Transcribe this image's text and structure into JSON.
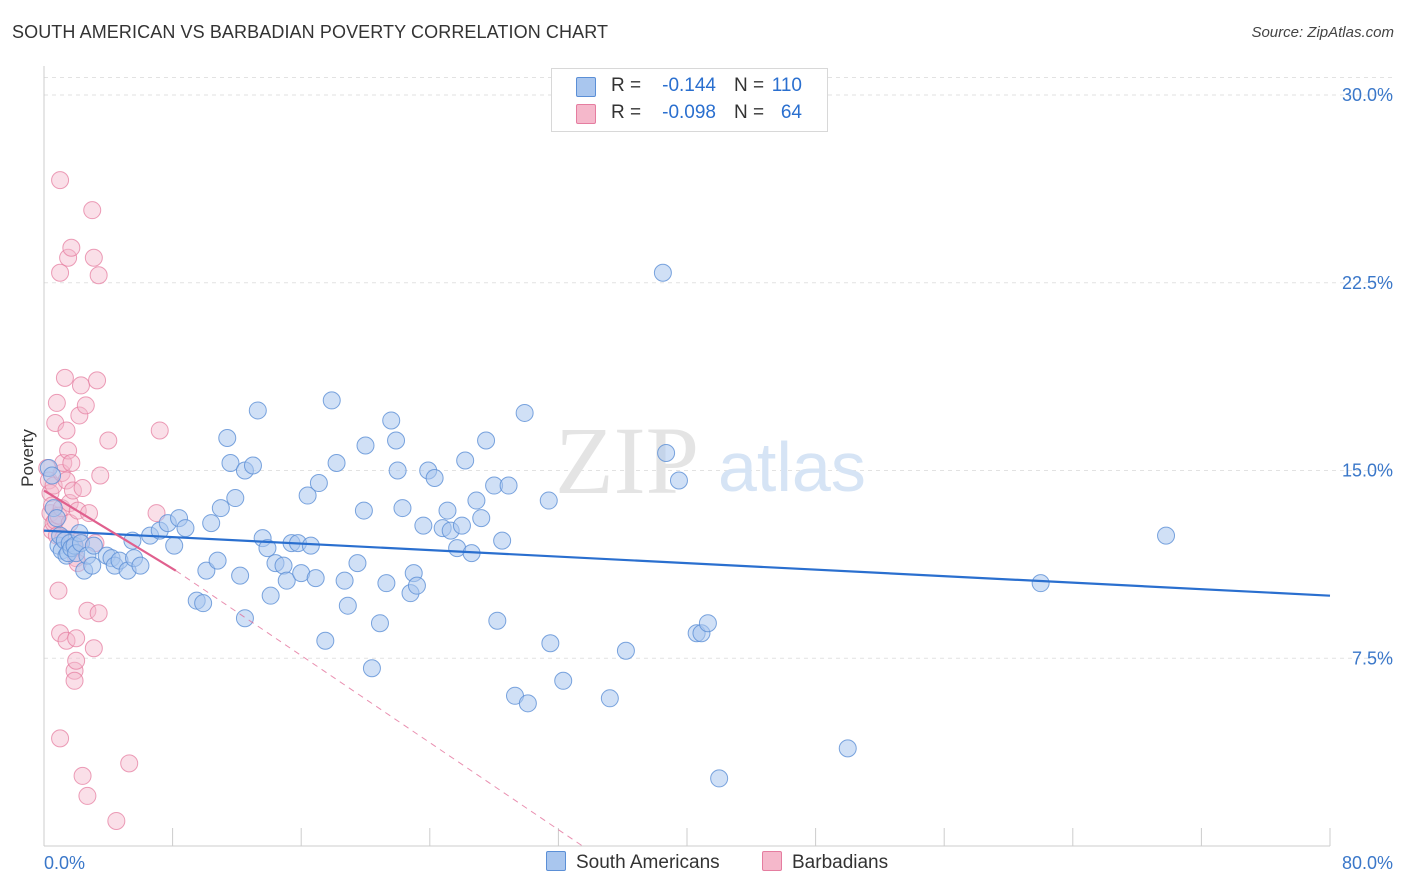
{
  "title": "SOUTH AMERICAN VS BARBADIAN POVERTY CORRELATION CHART",
  "source": "Source: ZipAtlas.com",
  "watermark": {
    "zip": "ZIP",
    "atlas": "atlas"
  },
  "legend": {
    "rows": [
      {
        "r_label": "R =",
        "r_value": "-0.144",
        "n_label": "N =",
        "n_value": "110"
      },
      {
        "r_label": "R =",
        "r_value": "-0.098",
        "n_label": "N =",
        "n_value": "64"
      }
    ]
  },
  "bottom_legend": [
    "South Americans",
    "Barbadians"
  ],
  "colors": {
    "blue_fill": "#a9c6ee",
    "blue_stroke": "#5b8fd6",
    "blue_line": "#2a6fcf",
    "pink_fill": "#f5b8cb",
    "pink_stroke": "#e57da0",
    "pink_line": "#e0608e",
    "axis_text": "#3a77c9"
  },
  "chart_data": {
    "type": "scatter",
    "title": "SOUTH AMERICAN VS BARBADIAN POVERTY CORRELATION CHART",
    "xlabel": "",
    "ylabel": "Poverty",
    "xlim": [
      0,
      80
    ],
    "ylim": [
      0,
      31
    ],
    "x_tick_labels": [
      "0.0%",
      "80.0%"
    ],
    "y_ticks": [
      7.5,
      15.0,
      22.5,
      30.0
    ],
    "y_tick_labels": [
      "7.5%",
      "15.0%",
      "22.5%",
      "30.0%"
    ],
    "grid": true,
    "series": [
      {
        "name": "South Americans",
        "r": -0.144,
        "n": 110,
        "trend": {
          "x": [
            0,
            80
          ],
          "y": [
            12.6,
            10.0
          ]
        },
        "points": [
          [
            0.3,
            15.1
          ],
          [
            0.5,
            14.8
          ],
          [
            0.6,
            13.5
          ],
          [
            0.8,
            13.1
          ],
          [
            0.9,
            12.0
          ],
          [
            1.0,
            12.4
          ],
          [
            1.1,
            11.8
          ],
          [
            1.3,
            12.2
          ],
          [
            1.4,
            11.6
          ],
          [
            1.5,
            11.7
          ],
          [
            1.6,
            12.1
          ],
          [
            1.7,
            11.9
          ],
          [
            1.9,
            12.0
          ],
          [
            2.0,
            11.7
          ],
          [
            2.2,
            12.5
          ],
          [
            2.3,
            12.1
          ],
          [
            2.5,
            11.0
          ],
          [
            2.7,
            11.6
          ],
          [
            3.0,
            11.2
          ],
          [
            3.1,
            12.0
          ],
          [
            3.9,
            11.6
          ],
          [
            4.2,
            11.5
          ],
          [
            4.4,
            11.2
          ],
          [
            4.7,
            11.4
          ],
          [
            5.2,
            11.0
          ],
          [
            5.5,
            12.2
          ],
          [
            5.6,
            11.5
          ],
          [
            6.0,
            11.2
          ],
          [
            6.6,
            12.4
          ],
          [
            7.2,
            12.6
          ],
          [
            7.7,
            12.9
          ],
          [
            8.1,
            12.0
          ],
          [
            8.4,
            13.1
          ],
          [
            8.8,
            12.7
          ],
          [
            9.5,
            9.8
          ],
          [
            9.9,
            9.7
          ],
          [
            10.1,
            11.0
          ],
          [
            10.4,
            12.9
          ],
          [
            10.8,
            11.4
          ],
          [
            11.0,
            13.5
          ],
          [
            11.4,
            16.3
          ],
          [
            11.6,
            15.3
          ],
          [
            11.9,
            13.9
          ],
          [
            12.2,
            10.8
          ],
          [
            12.5,
            9.1
          ],
          [
            12.5,
            15.0
          ],
          [
            13.0,
            15.2
          ],
          [
            13.3,
            17.4
          ],
          [
            13.6,
            12.3
          ],
          [
            13.9,
            11.9
          ],
          [
            14.1,
            10.0
          ],
          [
            14.4,
            11.3
          ],
          [
            14.9,
            11.2
          ],
          [
            15.1,
            10.6
          ],
          [
            15.4,
            12.1
          ],
          [
            15.8,
            12.1
          ],
          [
            16.0,
            10.9
          ],
          [
            16.4,
            14.0
          ],
          [
            16.6,
            12.0
          ],
          [
            16.9,
            10.7
          ],
          [
            17.1,
            14.5
          ],
          [
            17.5,
            8.2
          ],
          [
            17.9,
            17.8
          ],
          [
            18.2,
            15.3
          ],
          [
            18.7,
            10.6
          ],
          [
            18.9,
            9.6
          ],
          [
            19.5,
            11.3
          ],
          [
            19.9,
            13.4
          ],
          [
            20.0,
            16.0
          ],
          [
            20.4,
            7.1
          ],
          [
            20.9,
            8.9
          ],
          [
            21.3,
            10.5
          ],
          [
            21.6,
            17.0
          ],
          [
            21.9,
            16.2
          ],
          [
            22.0,
            15.0
          ],
          [
            22.3,
            13.5
          ],
          [
            22.8,
            10.1
          ],
          [
            23.0,
            10.9
          ],
          [
            23.2,
            10.4
          ],
          [
            23.6,
            12.8
          ],
          [
            23.9,
            15.0
          ],
          [
            24.3,
            14.7
          ],
          [
            24.8,
            12.7
          ],
          [
            25.1,
            13.4
          ],
          [
            25.3,
            12.6
          ],
          [
            25.7,
            11.9
          ],
          [
            26.0,
            12.8
          ],
          [
            26.2,
            15.4
          ],
          [
            26.6,
            11.7
          ],
          [
            26.9,
            13.8
          ],
          [
            27.2,
            13.1
          ],
          [
            27.5,
            16.2
          ],
          [
            28.0,
            14.4
          ],
          [
            28.2,
            9.0
          ],
          [
            28.5,
            12.2
          ],
          [
            28.9,
            14.4
          ],
          [
            29.3,
            6.0
          ],
          [
            29.9,
            17.3
          ],
          [
            30.1,
            5.7
          ],
          [
            31.4,
            13.8
          ],
          [
            31.5,
            8.1
          ],
          [
            32.3,
            6.6
          ],
          [
            35.2,
            5.9
          ],
          [
            36.2,
            7.8
          ],
          [
            38.7,
            15.7
          ],
          [
            39.5,
            14.6
          ],
          [
            38.5,
            22.9
          ],
          [
            40.6,
            8.5
          ],
          [
            40.9,
            8.5
          ],
          [
            41.3,
            8.9
          ],
          [
            42.0,
            2.7
          ],
          [
            50.0,
            3.9
          ],
          [
            62.0,
            10.5
          ],
          [
            69.8,
            12.4
          ]
        ]
      },
      {
        "name": "Barbadians",
        "r": -0.098,
        "n": 64,
        "trend": {
          "x": [
            0,
            8.2
          ],
          "y": [
            14.2,
            11.0
          ]
        },
        "trend_extended": {
          "x": [
            8.2,
            33.5
          ],
          "y": [
            11.0,
            0.0
          ]
        },
        "points": [
          [
            0.2,
            15.1
          ],
          [
            0.3,
            14.6
          ],
          [
            0.4,
            14.1
          ],
          [
            0.4,
            13.3
          ],
          [
            0.5,
            13.6
          ],
          [
            0.5,
            12.6
          ],
          [
            0.6,
            12.9
          ],
          [
            0.6,
            14.4
          ],
          [
            0.7,
            16.9
          ],
          [
            0.7,
            13.0
          ],
          [
            0.8,
            17.7
          ],
          [
            0.8,
            12.4
          ],
          [
            0.9,
            13.2
          ],
          [
            0.9,
            10.2
          ],
          [
            1.0,
            26.6
          ],
          [
            1.0,
            22.9
          ],
          [
            1.0,
            8.5
          ],
          [
            1.0,
            4.3
          ],
          [
            1.1,
            14.9
          ],
          [
            1.1,
            13.5
          ],
          [
            1.2,
            15.3
          ],
          [
            1.2,
            12.3
          ],
          [
            1.3,
            18.7
          ],
          [
            1.4,
            14.6
          ],
          [
            1.4,
            16.6
          ],
          [
            1.4,
            8.2
          ],
          [
            1.5,
            23.5
          ],
          [
            1.5,
            15.8
          ],
          [
            1.6,
            13.7
          ],
          [
            1.6,
            12.9
          ],
          [
            1.7,
            23.9
          ],
          [
            1.7,
            15.3
          ],
          [
            1.8,
            14.2
          ],
          [
            1.8,
            12.2
          ],
          [
            1.9,
            11.9
          ],
          [
            1.9,
            7.0
          ],
          [
            1.9,
            6.6
          ],
          [
            2.0,
            11.5
          ],
          [
            2.0,
            8.3
          ],
          [
            2.0,
            7.4
          ],
          [
            2.1,
            13.4
          ],
          [
            2.1,
            11.3
          ],
          [
            2.2,
            17.2
          ],
          [
            2.2,
            12.2
          ],
          [
            2.3,
            18.4
          ],
          [
            2.4,
            14.3
          ],
          [
            2.4,
            2.8
          ],
          [
            2.6,
            17.6
          ],
          [
            2.7,
            9.4
          ],
          [
            2.7,
            2.0
          ],
          [
            2.8,
            13.3
          ],
          [
            3.0,
            25.4
          ],
          [
            3.1,
            23.5
          ],
          [
            3.1,
            7.9
          ],
          [
            3.2,
            12.1
          ],
          [
            3.3,
            18.6
          ],
          [
            3.4,
            22.8
          ],
          [
            3.4,
            9.3
          ],
          [
            3.5,
            14.8
          ],
          [
            4.0,
            16.2
          ],
          [
            4.5,
            1.0
          ],
          [
            5.3,
            3.3
          ],
          [
            7.2,
            16.6
          ],
          [
            7.0,
            13.3
          ]
        ]
      }
    ]
  }
}
